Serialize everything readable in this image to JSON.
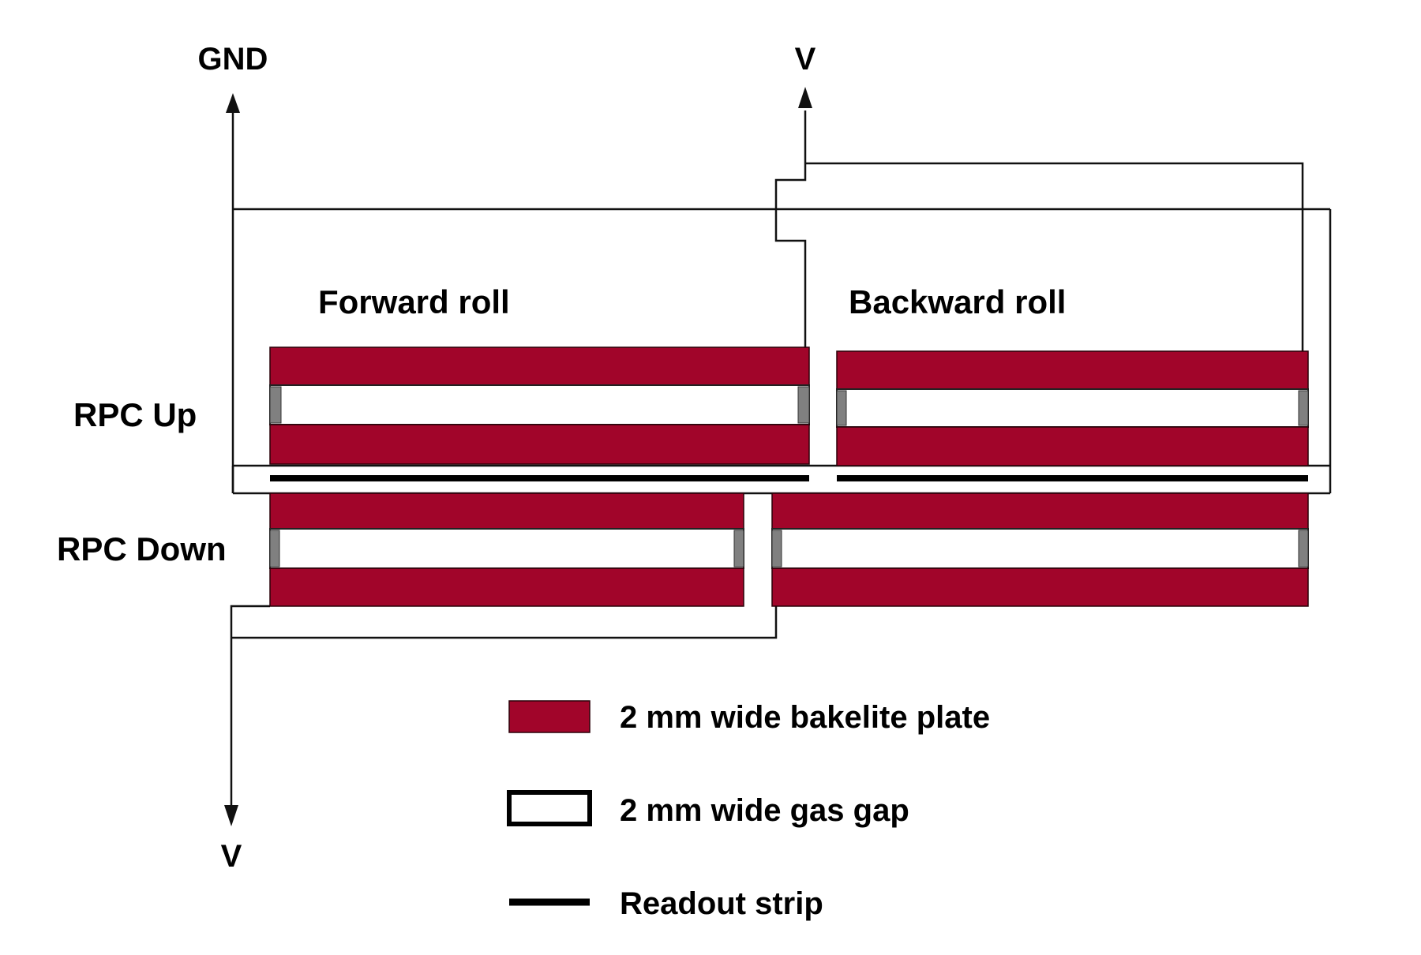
{
  "labels": {
    "gnd": "GND",
    "v_top": "V",
    "v_bottom": "V",
    "forward_roll": "Forward roll",
    "backward_roll": "Backward roll",
    "rpc_up": "RPC Up",
    "rpc_down": "RPC Down"
  },
  "legend": {
    "bakelite": "2 mm wide bakelite plate",
    "gas_gap": "2 mm wide gas gap",
    "readout_strip": "Readout strip"
  },
  "colors": {
    "bakelite": "#a1052a",
    "spacer": "#808080",
    "wire": "#111111",
    "strip": "#000000"
  }
}
